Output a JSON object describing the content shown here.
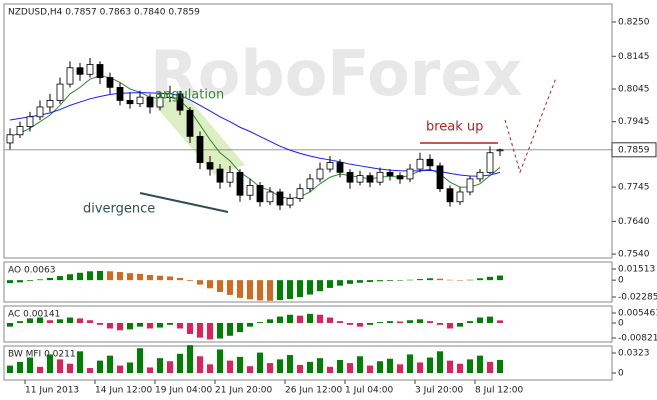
{
  "chart_data": [
    {
      "type": "candlestick",
      "title": "NZDUSD,H4  0.7857 0.7863 0.7840 0.7859",
      "watermark": "RoboForex",
      "ylim": [
        0.7528,
        0.8305
      ],
      "yticks": [
        {
          "value": 0.825,
          "label": "0.8250"
        },
        0.8145,
        0.8045,
        0.7945,
        0.7745,
        {
          "value": 0.764,
          "label": "0.7640"
        },
        {
          "value": 0.754,
          "label": "0.7540"
        }
      ],
      "last_price": 0.7859,
      "annotations": [
        {
          "text": "angulation",
          "color": "#2e8b2e"
        },
        {
          "text": "break up",
          "color": "#b22222"
        },
        {
          "text": "divergence",
          "color": "#2f4f4f"
        }
      ],
      "candles": [
        [
          0.788,
          0.7925,
          0.786,
          0.7905
        ],
        [
          0.7905,
          0.7945,
          0.7895,
          0.793
        ],
        [
          0.793,
          0.7975,
          0.7915,
          0.796
        ],
        [
          0.796,
          0.801,
          0.795,
          0.799
        ],
        [
          0.799,
          0.803,
          0.7975,
          0.801
        ],
        [
          0.801,
          0.808,
          0.8,
          0.806
        ],
        [
          0.806,
          0.813,
          0.805,
          0.811
        ],
        [
          0.811,
          0.8125,
          0.807,
          0.809
        ],
        [
          0.809,
          0.814,
          0.808,
          0.812
        ],
        [
          0.812,
          0.813,
          0.806,
          0.808
        ],
        [
          0.808,
          0.8095,
          0.803,
          0.805
        ],
        [
          0.805,
          0.8065,
          0.7995,
          0.801
        ],
        [
          0.801,
          0.8035,
          0.7985,
          0.8
        ],
        [
          0.8,
          0.804,
          0.799,
          0.802
        ],
        [
          0.802,
          0.803,
          0.797,
          0.799
        ],
        [
          0.799,
          0.8035,
          0.798,
          0.802
        ],
        [
          0.802,
          0.8055,
          0.8005,
          0.803
        ],
        [
          0.803,
          0.804,
          0.7965,
          0.798
        ],
        [
          0.798,
          0.799,
          0.788,
          0.79
        ],
        [
          0.79,
          0.7915,
          0.78,
          0.782
        ],
        [
          0.782,
          0.784,
          0.778,
          0.78
        ],
        [
          0.78,
          0.7815,
          0.774,
          0.776
        ],
        [
          0.776,
          0.781,
          0.7745,
          0.779
        ],
        [
          0.779,
          0.78,
          0.77,
          0.772
        ],
        [
          0.772,
          0.777,
          0.7705,
          0.775
        ],
        [
          0.775,
          0.776,
          0.7685,
          0.77
        ],
        [
          0.77,
          0.7745,
          0.769,
          0.773
        ],
        [
          0.773,
          0.774,
          0.7675,
          0.769
        ],
        [
          0.769,
          0.7725,
          0.768,
          0.771
        ],
        [
          0.771,
          0.7755,
          0.77,
          0.774
        ],
        [
          0.774,
          0.7785,
          0.773,
          0.777
        ],
        [
          0.777,
          0.782,
          0.776,
          0.78
        ],
        [
          0.78,
          0.784,
          0.779,
          0.782
        ],
        [
          0.782,
          0.783,
          0.7775,
          0.779
        ],
        [
          0.779,
          0.78,
          0.774,
          0.776
        ],
        [
          0.776,
          0.7795,
          0.775,
          0.778
        ],
        [
          0.778,
          0.779,
          0.7745,
          0.776
        ],
        [
          0.776,
          0.7805,
          0.775,
          0.779
        ],
        [
          0.779,
          0.78,
          0.7765,
          0.778
        ],
        [
          0.778,
          0.779,
          0.7755,
          0.777
        ],
        [
          0.777,
          0.7815,
          0.776,
          0.78
        ],
        [
          0.78,
          0.785,
          0.779,
          0.783
        ],
        [
          0.783,
          0.7845,
          0.7795,
          0.781
        ],
        [
          0.781,
          0.782,
          0.773,
          0.774
        ],
        [
          0.774,
          0.775,
          0.7685,
          0.77
        ],
        [
          0.77,
          0.7745,
          0.769,
          0.773
        ],
        [
          0.773,
          0.778,
          0.772,
          0.777
        ],
        [
          0.777,
          0.78,
          0.776,
          0.779
        ],
        [
          0.779,
          0.787,
          0.7785,
          0.785
        ],
        [
          0.7857,
          0.7863,
          0.784,
          0.7859
        ]
      ],
      "lines": [
        {
          "color": "#2e8b2e",
          "values": [
            0.79,
            0.791,
            0.7925,
            0.7945,
            0.7965,
            0.7995,
            0.803,
            0.805,
            0.8075,
            0.8085,
            0.808,
            0.8065,
            0.8045,
            0.8035,
            0.802,
            0.8015,
            0.802,
            0.801,
            0.798,
            0.7935,
            0.789,
            0.785,
            0.7825,
            0.779,
            0.777,
            0.7745,
            0.7735,
            0.7715,
            0.771,
            0.7715,
            0.773,
            0.7755,
            0.7775,
            0.7785,
            0.778,
            0.7775,
            0.777,
            0.7775,
            0.7778,
            0.7775,
            0.778,
            0.7795,
            0.78,
            0.7785,
            0.776,
            0.7745,
            0.7745,
            0.7755,
            0.778,
            0.7805
          ]
        },
        {
          "color": "#1a1aff",
          "values": [
            0.795,
            0.7955,
            0.796,
            0.7965,
            0.7972,
            0.7982,
            0.7995,
            0.8005,
            0.8015,
            0.8022,
            0.8028,
            0.8032,
            0.8033,
            0.8034,
            0.8033,
            0.8032,
            0.803,
            0.8025,
            0.8012,
            0.7995,
            0.7978,
            0.796,
            0.7945,
            0.7928,
            0.7915,
            0.79,
            0.7885,
            0.787,
            0.7858,
            0.7848,
            0.784,
            0.7833,
            0.7828,
            0.7822,
            0.7815,
            0.781,
            0.7805,
            0.78,
            0.7797,
            0.7795,
            0.7794,
            0.7795,
            0.7796,
            0.7793,
            0.7787,
            0.7782,
            0.7779,
            0.7778,
            0.7782,
            0.779
          ]
        }
      ]
    },
    {
      "type": "bar",
      "title": "AO 0.0063",
      "ylim": [
        -0.0296,
        0.0246
      ],
      "yticks": [
        0.01513,
        0,
        -0.02285
      ],
      "colors": [
        "#008000",
        "#d2691e"
      ],
      "values": [
        -0.004,
        -0.003,
        -0.001,
        0.001,
        0.003,
        0.0055,
        0.008,
        0.01,
        0.012,
        0.0125,
        0.012,
        0.011,
        0.0095,
        0.0085,
        0.007,
        0.006,
        0.005,
        0.003,
        -0.001,
        -0.006,
        -0.011,
        -0.016,
        -0.02,
        -0.024,
        -0.026,
        -0.0275,
        -0.028,
        -0.027,
        -0.0255,
        -0.023,
        -0.0195,
        -0.015,
        -0.0105,
        -0.0075,
        -0.005,
        -0.0035,
        -0.0025,
        -0.0015,
        -0.001,
        -0.0005,
        0.0005,
        0.0015,
        0.0025,
        0.002,
        0.0005,
        -0.0005,
        0.0005,
        0.0025,
        0.0045,
        0.0063
      ]
    },
    {
      "type": "bar",
      "title": "AC 0.00141",
      "ylim": [
        -0.0104,
        0.00929
      ],
      "yticks": [
        0.005461,
        0,
        -0.00821
      ],
      "colors": [
        "#008000",
        "#e0205a"
      ],
      "values": [
        -0.002,
        0.001,
        0.0025,
        0.003,
        0.0015,
        0.002,
        0.003,
        0.0025,
        0.0015,
        -0.001,
        -0.003,
        -0.004,
        -0.0035,
        -0.002,
        -0.003,
        -0.0025,
        -0.001,
        -0.003,
        -0.006,
        -0.008,
        -0.009,
        -0.0085,
        -0.007,
        -0.005,
        -0.002,
        0.0005,
        0.002,
        0.0035,
        0.0045,
        0.004,
        0.005,
        0.0045,
        0.003,
        0.001,
        -0.001,
        -0.002,
        -0.001,
        0.0005,
        0.001,
        0.0008,
        0.0015,
        0.002,
        0.001,
        -0.001,
        -0.003,
        -0.002,
        0.001,
        0.003,
        0.0035,
        0.00141
      ]
    },
    {
      "type": "bar",
      "title": "BW MFI 0.0211",
      "ylim": [
        -0.0113,
        0.0436
      ],
      "yticks": [
        0.0323,
        0
      ],
      "colors": [
        "#008000",
        "#e0205a"
      ],
      "values": [
        0.012,
        0.018,
        0.025,
        0.01,
        0.03,
        0.022,
        0.015,
        0.035,
        0.008,
        0.02,
        0.028,
        0.012,
        0.017,
        0.04,
        0.009,
        0.024,
        0.019,
        0.031,
        0.045,
        0.027,
        0.014,
        0.038,
        0.02,
        0.026,
        0.011,
        0.033,
        0.016,
        0.022,
        0.029,
        0.013,
        0.018,
        0.024,
        0.01,
        0.021,
        0.016,
        0.027,
        0.012,
        0.019,
        0.023,
        0.014,
        0.03,
        0.017,
        0.025,
        0.035,
        0.02,
        0.015,
        0.022,
        0.028,
        0.018,
        0.0211
      ],
      "categories": [
        null,
        null,
        "11 Jun 2013",
        null,
        null,
        null,
        null,
        null,
        null,
        "14 Jun 12:00",
        null,
        null,
        null,
        null,
        null,
        "19 Jun 04:00",
        null,
        null,
        null,
        null,
        null,
        "21 Jun 20:00",
        null,
        null,
        null,
        null,
        null,
        null,
        "26 Jun 12:00",
        null,
        null,
        null,
        null,
        null,
        "1 Jul 04:00",
        null,
        null,
        null,
        null,
        null,
        null,
        "3 Jul 20:00",
        null,
        null,
        null,
        null,
        null,
        "8 Jul 12:00",
        null,
        null
      ]
    }
  ]
}
